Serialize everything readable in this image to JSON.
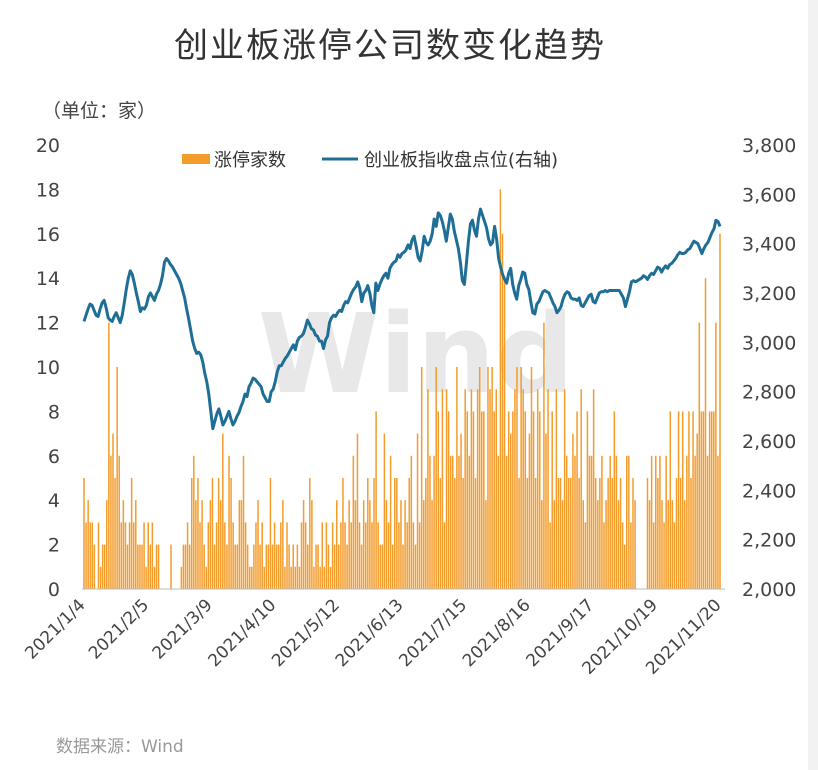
{
  "title": "创业板涨停公司数变化趋势",
  "unit_label": "（单位：家）",
  "source": "数据来源：Wind",
  "watermark": "Wind",
  "colors": {
    "bars": "#F39C2B",
    "line": "#1F6E96",
    "axis": "#bbbbbb",
    "text": "#444444"
  },
  "chart_data": {
    "type": "bar+line",
    "legend_position": "top-center",
    "grid": false,
    "left_axis": {
      "ylim": [
        0,
        20
      ],
      "ticks": [
        "0",
        "2",
        "4",
        "6",
        "8",
        "10",
        "12",
        "14",
        "16",
        "18",
        "20"
      ]
    },
    "right_axis": {
      "ylim": [
        2000,
        3800
      ],
      "ticks": [
        "2,000",
        "2,200",
        "2,400",
        "2,600",
        "2,800",
        "3,000",
        "3,200",
        "3,400",
        "3,600",
        "3,800"
      ]
    },
    "x_tick_labels": [
      "2021/1/4",
      "2021/2/5",
      "2021/3/9",
      "2021/4/10",
      "2021/5/12",
      "2021/6/13",
      "2021/7/15",
      "2021/8/16",
      "2021/9/17",
      "2021/10/19",
      "2021/11/20"
    ],
    "series": [
      {
        "name": "涨停家数",
        "type": "bar",
        "axis": "left",
        "values": [
          5,
          3,
          4,
          3,
          3,
          2,
          0,
          3,
          1,
          2,
          2,
          4,
          12,
          6,
          7,
          5,
          10,
          6,
          3,
          4,
          3,
          2,
          3,
          5,
          3,
          4,
          2,
          2,
          2,
          3,
          1,
          3,
          2,
          3,
          1,
          2,
          2,
          0,
          0,
          0,
          0,
          0,
          2,
          0,
          0,
          0,
          0,
          1,
          2,
          2,
          3,
          2,
          5,
          6,
          4,
          5,
          3,
          4,
          2,
          1,
          3,
          4,
          5,
          2,
          3,
          5,
          4,
          7,
          3,
          2,
          6,
          5,
          3,
          2,
          2,
          4,
          4,
          6,
          3,
          2,
          1,
          1,
          2,
          3,
          4,
          2,
          3,
          1,
          2,
          2,
          5,
          2,
          3,
          2,
          2,
          3,
          4,
          1,
          3,
          2,
          1,
          2,
          1,
          2,
          1,
          3,
          4,
          3,
          2,
          5,
          4,
          1,
          2,
          2,
          1,
          3,
          1,
          3,
          2,
          1,
          3,
          2,
          4,
          2,
          3,
          5,
          3,
          2,
          4,
          3,
          6,
          4,
          7,
          3,
          2,
          4,
          3,
          5,
          4,
          3,
          5,
          8,
          3,
          2,
          2,
          7,
          4,
          3,
          6,
          2,
          5,
          5,
          3,
          4,
          2,
          4,
          3,
          5,
          6,
          3,
          2,
          7,
          3,
          10,
          4,
          5,
          9,
          6,
          4,
          6,
          10,
          8,
          5,
          9,
          3,
          9,
          8,
          6,
          6,
          5,
          10,
          6,
          7,
          5,
          9,
          8,
          6,
          9,
          8,
          5,
          9,
          10,
          8,
          8,
          4,
          10,
          9,
          10,
          8,
          9,
          6,
          18,
          16,
          14,
          6,
          8,
          7,
          8,
          9,
          10,
          5,
          10,
          9,
          8,
          5,
          7,
          10,
          8,
          5,
          9,
          8,
          4,
          12,
          7,
          9,
          3,
          8,
          4,
          9,
          5,
          5,
          4,
          9,
          6,
          5,
          5,
          7,
          6,
          8,
          5,
          9,
          4,
          3,
          8,
          6,
          6,
          9,
          5,
          4,
          5,
          6,
          3,
          4,
          5,
          6,
          5,
          8,
          6,
          4,
          5,
          3,
          2,
          6,
          6,
          3,
          5,
          4,
          0,
          0,
          0,
          0,
          0,
          5,
          4,
          6,
          3,
          6,
          5,
          6,
          4,
          3,
          6,
          4,
          8,
          4,
          3,
          5,
          8,
          5,
          8,
          4,
          6,
          8,
          5,
          8,
          6,
          7,
          12,
          8,
          8,
          14,
          6,
          8,
          8,
          8,
          12,
          6,
          16
        ]
      },
      {
        "name": "创业板指收盘点位(右轴)",
        "type": "line",
        "axis": "right",
        "values": [
          3085,
          3110,
          3135,
          3155,
          3150,
          3130,
          3110,
          3105,
          3135,
          3160,
          3170,
          3140,
          3100,
          3090,
          3085,
          3105,
          3120,
          3100,
          3080,
          3110,
          3160,
          3215,
          3260,
          3290,
          3275,
          3240,
          3200,
          3165,
          3125,
          3140,
          3135,
          3150,
          3185,
          3200,
          3185,
          3170,
          3195,
          3210,
          3235,
          3270,
          3325,
          3340,
          3330,
          3315,
          3305,
          3290,
          3275,
          3260,
          3240,
          3210,
          3180,
          3135,
          3095,
          3050,
          3005,
          2975,
          2955,
          2960,
          2950,
          2920,
          2875,
          2840,
          2790,
          2720,
          2650,
          2680,
          2710,
          2730,
          2700,
          2665,
          2680,
          2700,
          2720,
          2690,
          2665,
          2680,
          2700,
          2715,
          2740,
          2760,
          2790,
          2780,
          2820,
          2835,
          2855,
          2850,
          2840,
          2830,
          2820,
          2790,
          2775,
          2760,
          2760,
          2800,
          2810,
          2840,
          2880,
          2905,
          2905,
          2920,
          2935,
          2945,
          2960,
          2975,
          2990,
          2970,
          3005,
          3020,
          3025,
          3035,
          3060,
          3090,
          3075,
          3055,
          3050,
          3030,
          3025,
          3005,
          3005,
          2975,
          3010,
          3025,
          3080,
          3100,
          3110,
          3105,
          3120,
          3130,
          3125,
          3150,
          3165,
          3160,
          3180,
          3200,
          3215,
          3225,
          3245,
          3220,
          3165,
          3200,
          3210,
          3230,
          3200,
          3150,
          3120,
          3240,
          3210,
          3235,
          3255,
          3270,
          3280,
          3260,
          3300,
          3315,
          3325,
          3330,
          3355,
          3345,
          3360,
          3365,
          3375,
          3395,
          3380,
          3415,
          3430,
          3390,
          3345,
          3330,
          3370,
          3430,
          3405,
          3395,
          3410,
          3440,
          3500,
          3470,
          3525,
          3515,
          3490,
          3455,
          3410,
          3465,
          3520,
          3500,
          3450,
          3415,
          3380,
          3325,
          3250,
          3235,
          3320,
          3410,
          3480,
          3495,
          3455,
          3430,
          3500,
          3540,
          3515,
          3490,
          3465,
          3420,
          3395,
          3405,
          3470,
          3420,
          3340,
          3305,
          3275,
          3255,
          3240,
          3280,
          3300,
          3235,
          3200,
          3175,
          3230,
          3255,
          3285,
          3280,
          3235,
          3215,
          3165,
          3120,
          3115,
          3155,
          3165,
          3185,
          3205,
          3210,
          3205,
          3200,
          3180,
          3160,
          3145,
          3120,
          3130,
          3145,
          3175,
          3195,
          3205,
          3200,
          3180,
          3175,
          3175,
          3170,
          3180,
          3150,
          3145,
          3160,
          3175,
          3190,
          3195,
          3165,
          3160,
          3180,
          3200,
          3205,
          3205,
          3210,
          3205,
          3210,
          3210,
          3210,
          3210,
          3210,
          3210,
          3195,
          3180,
          3145,
          3175,
          3205,
          3245,
          3250,
          3245,
          3250,
          3255,
          3260,
          3270,
          3265,
          3255,
          3270,
          3280,
          3275,
          3290,
          3305,
          3300,
          3285,
          3300,
          3310,
          3300,
          3315,
          3320,
          3330,
          3340,
          3355,
          3365,
          3360,
          3360,
          3365,
          3375,
          3380,
          3395,
          3410,
          3405,
          3400,
          3380,
          3360,
          3380,
          3395,
          3405,
          3425,
          3445,
          3460,
          3495,
          3490,
          3470
        ]
      }
    ]
  }
}
